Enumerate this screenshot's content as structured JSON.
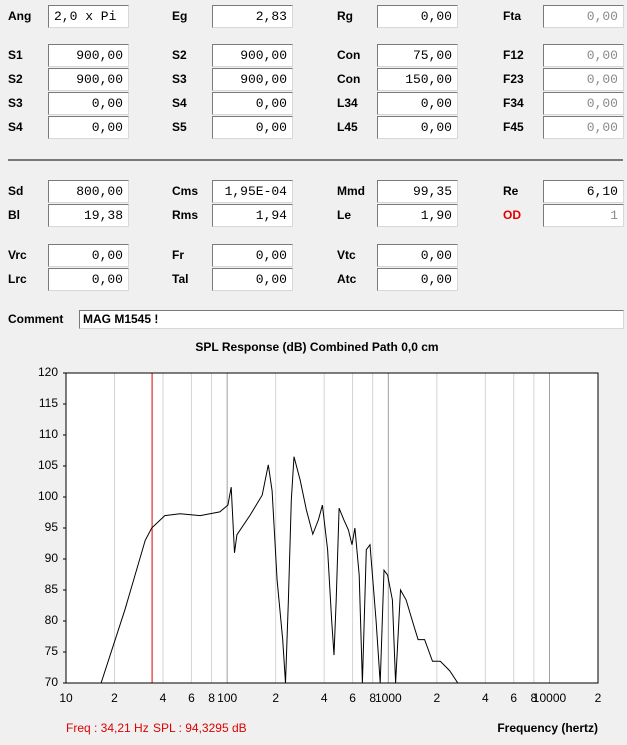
{
  "form": {
    "rows": [
      [
        {
          "label": "Ang",
          "value": "2,0 x Pi"
        },
        {
          "label": "Eg",
          "value": "2,83"
        },
        {
          "label": "Rg",
          "value": "0,00"
        },
        {
          "label": "Fta",
          "value": "0,00",
          "disabled": true
        }
      ],
      [
        {
          "label": "S1",
          "value": "900,00"
        },
        {
          "label": "S2",
          "value": "900,00"
        },
        {
          "label": "Con",
          "value": "75,00"
        },
        {
          "label": "F12",
          "value": "0,00",
          "disabled": true
        }
      ],
      [
        {
          "label": "S2",
          "value": "900,00"
        },
        {
          "label": "S3",
          "value": "900,00"
        },
        {
          "label": "Con",
          "value": "150,00"
        },
        {
          "label": "F23",
          "value": "0,00",
          "disabled": true
        }
      ],
      [
        {
          "label": "S3",
          "value": "0,00"
        },
        {
          "label": "S4",
          "value": "0,00"
        },
        {
          "label": "L34",
          "value": "0,00"
        },
        {
          "label": "F34",
          "value": "0,00",
          "disabled": true
        }
      ],
      [
        {
          "label": "S4",
          "value": "0,00"
        },
        {
          "label": "S5",
          "value": "0,00"
        },
        {
          "label": "L45",
          "value": "0,00"
        },
        {
          "label": "F45",
          "value": "0,00",
          "disabled": true
        }
      ],
      [
        {
          "label": "Sd",
          "value": "800,00"
        },
        {
          "label": "Cms",
          "value": "1,95E-04"
        },
        {
          "label": "Mmd",
          "value": "99,35"
        },
        {
          "label": "Re",
          "value": "6,10"
        }
      ],
      [
        {
          "label": "Bl",
          "value": "19,38"
        },
        {
          "label": "Rms",
          "value": "1,94"
        },
        {
          "label": "Le",
          "value": "1,90"
        },
        {
          "label": "OD",
          "value": "1",
          "disabled": true,
          "label_color": "#e00000"
        }
      ],
      [
        {
          "label": "Vrc",
          "value": "0,00"
        },
        {
          "label": "Fr",
          "value": "0,00"
        },
        {
          "label": "Vtc",
          "value": "0,00"
        }
      ],
      [
        {
          "label": "Lrc",
          "value": "0,00"
        },
        {
          "label": "Tal",
          "value": "0,00"
        },
        {
          "label": "Atc",
          "value": "0,00"
        }
      ]
    ],
    "comment_label": "Comment",
    "comment": "MAG M1545 !"
  },
  "chart_data": {
    "type": "line",
    "title": "SPL Response (dB)   Combined   Path 0,0 cm",
    "x_label": "Frequency (hertz)",
    "log_x": true,
    "xlim": [
      10,
      20000
    ],
    "ylim": [
      70,
      120
    ],
    "xticks": [
      10,
      {
        "value": 20,
        "label": "2"
      },
      {
        "value": 40,
        "label": "4"
      },
      {
        "value": 60,
        "label": "6"
      },
      {
        "value": 80,
        "label": "8"
      },
      100,
      {
        "value": 200,
        "label": "2"
      },
      {
        "value": 400,
        "label": "4"
      },
      {
        "value": 600,
        "label": "6"
      },
      {
        "value": 800,
        "label": "8"
      },
      1000,
      {
        "value": 2000,
        "label": "2"
      },
      {
        "value": 4000,
        "label": "4"
      },
      {
        "value": 6000,
        "label": "6"
      },
      {
        "value": 8000,
        "label": "8"
      },
      10000,
      {
        "value": 20000,
        "label": "2"
      }
    ],
    "yticks": [
      70,
      75,
      80,
      85,
      90,
      95,
      100,
      105,
      110,
      115,
      120
    ],
    "grid": true,
    "series": [
      {
        "color": "#000000",
        "x": [
          16.5,
          23.2,
          31,
          34,
          41,
          51,
          68,
          90,
          101,
          106,
          111,
          115,
          139,
          165,
          180,
          190,
          204,
          221,
          230,
          240,
          250,
          260,
          284,
          310,
          340,
          368,
          390,
          420,
          445,
          460,
          475,
          495,
          530,
          565,
          595,
          620,
          660,
          690,
          730,
          770,
          840,
          890,
          940,
          990,
          1060,
          1110,
          1190,
          1290,
          1410,
          1530,
          1680,
          1880,
          2100,
          2400,
          2700
        ],
        "values": [
          70,
          81.8,
          93,
          95,
          97,
          97.3,
          97,
          97.6,
          98.7,
          101.6,
          91,
          93.9,
          97.1,
          100.3,
          105.2,
          101,
          86.6,
          77,
          70,
          83.4,
          99.5,
          106.5,
          102.7,
          97.9,
          94,
          96.3,
          98.7,
          91.5,
          80,
          74.5,
          83.4,
          98.2,
          96.3,
          94.7,
          92.3,
          95,
          87.4,
          70,
          91.5,
          92.3,
          80,
          70,
          88.2,
          87.4,
          83.4,
          70,
          85,
          83.4,
          80,
          77,
          77,
          73.5,
          73.5,
          72,
          70
        ]
      }
    ],
    "cursor": {
      "x": 34.21,
      "color": "#e00000"
    },
    "readout": [
      "Freq : 34,21 Hz",
      "SPL : 94,3295 dB"
    ]
  }
}
